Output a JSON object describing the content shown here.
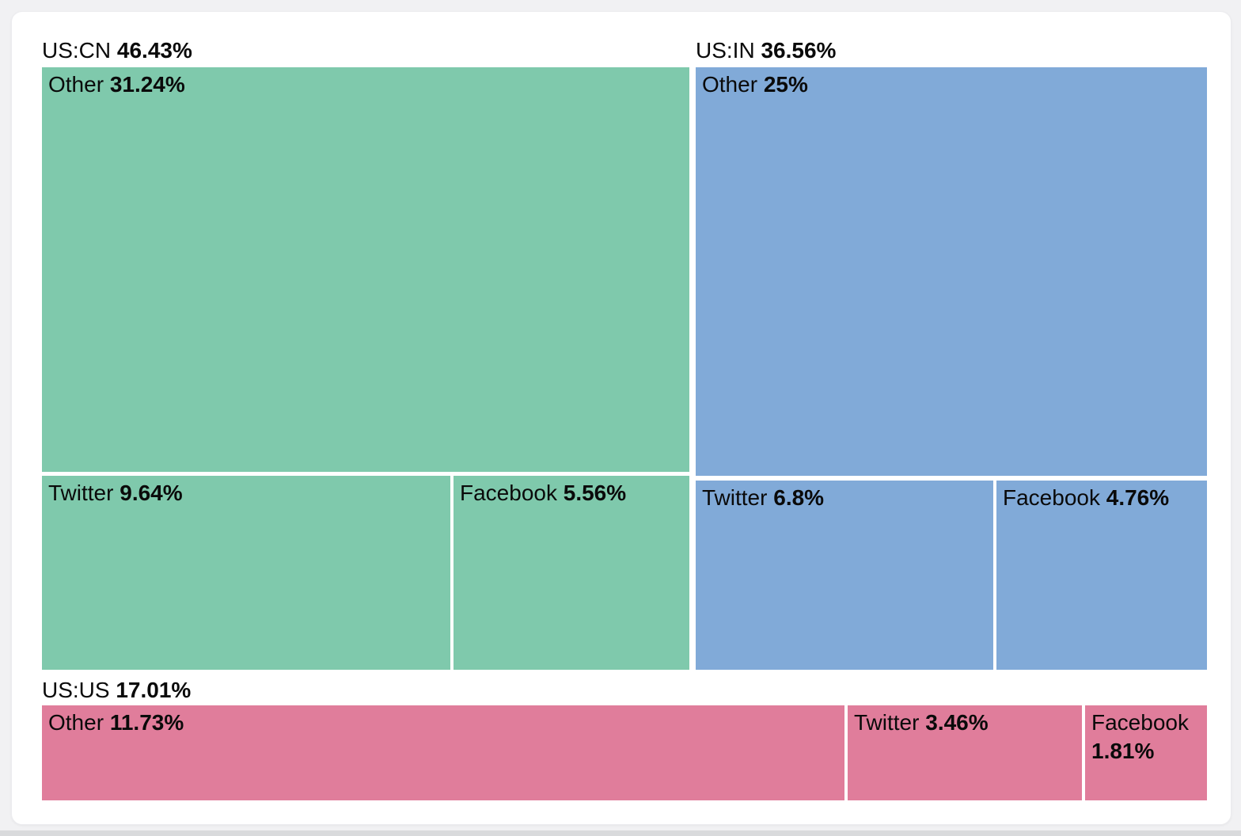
{
  "chart_data": {
    "type": "treemap",
    "title": "",
    "legend": "none",
    "text_color": "#0a0a0a",
    "background_color": "#ffffff",
    "page_background": "#f1f1f3",
    "groups": [
      {
        "name": "US:CN",
        "value": 46.43,
        "value_label": "46.43%",
        "color": "#7fc9ac",
        "children": [
          {
            "name": "Other",
            "value": 31.24,
            "value_label": "31.24%"
          },
          {
            "name": "Twitter",
            "value": 9.64,
            "value_label": "9.64%"
          },
          {
            "name": "Facebook",
            "value": 5.56,
            "value_label": "5.56%"
          }
        ]
      },
      {
        "name": "US:IN",
        "value": 36.56,
        "value_label": "36.56%",
        "color": "#81aad8",
        "children": [
          {
            "name": "Other",
            "value": 25,
            "value_label": "25%"
          },
          {
            "name": "Twitter",
            "value": 6.8,
            "value_label": "6.8%"
          },
          {
            "name": "Facebook",
            "value": 4.76,
            "value_label": "4.76%"
          }
        ]
      },
      {
        "name": "US:US",
        "value": 17.01,
        "value_label": "17.01%",
        "color": "#e07d9b",
        "children": [
          {
            "name": "Other",
            "value": 11.73,
            "value_label": "11.73%"
          },
          {
            "name": "Twitter",
            "value": 3.46,
            "value_label": "3.46%"
          },
          {
            "name": "Facebook",
            "value": 1.81,
            "value_label": "1.81%"
          }
        ]
      }
    ]
  }
}
